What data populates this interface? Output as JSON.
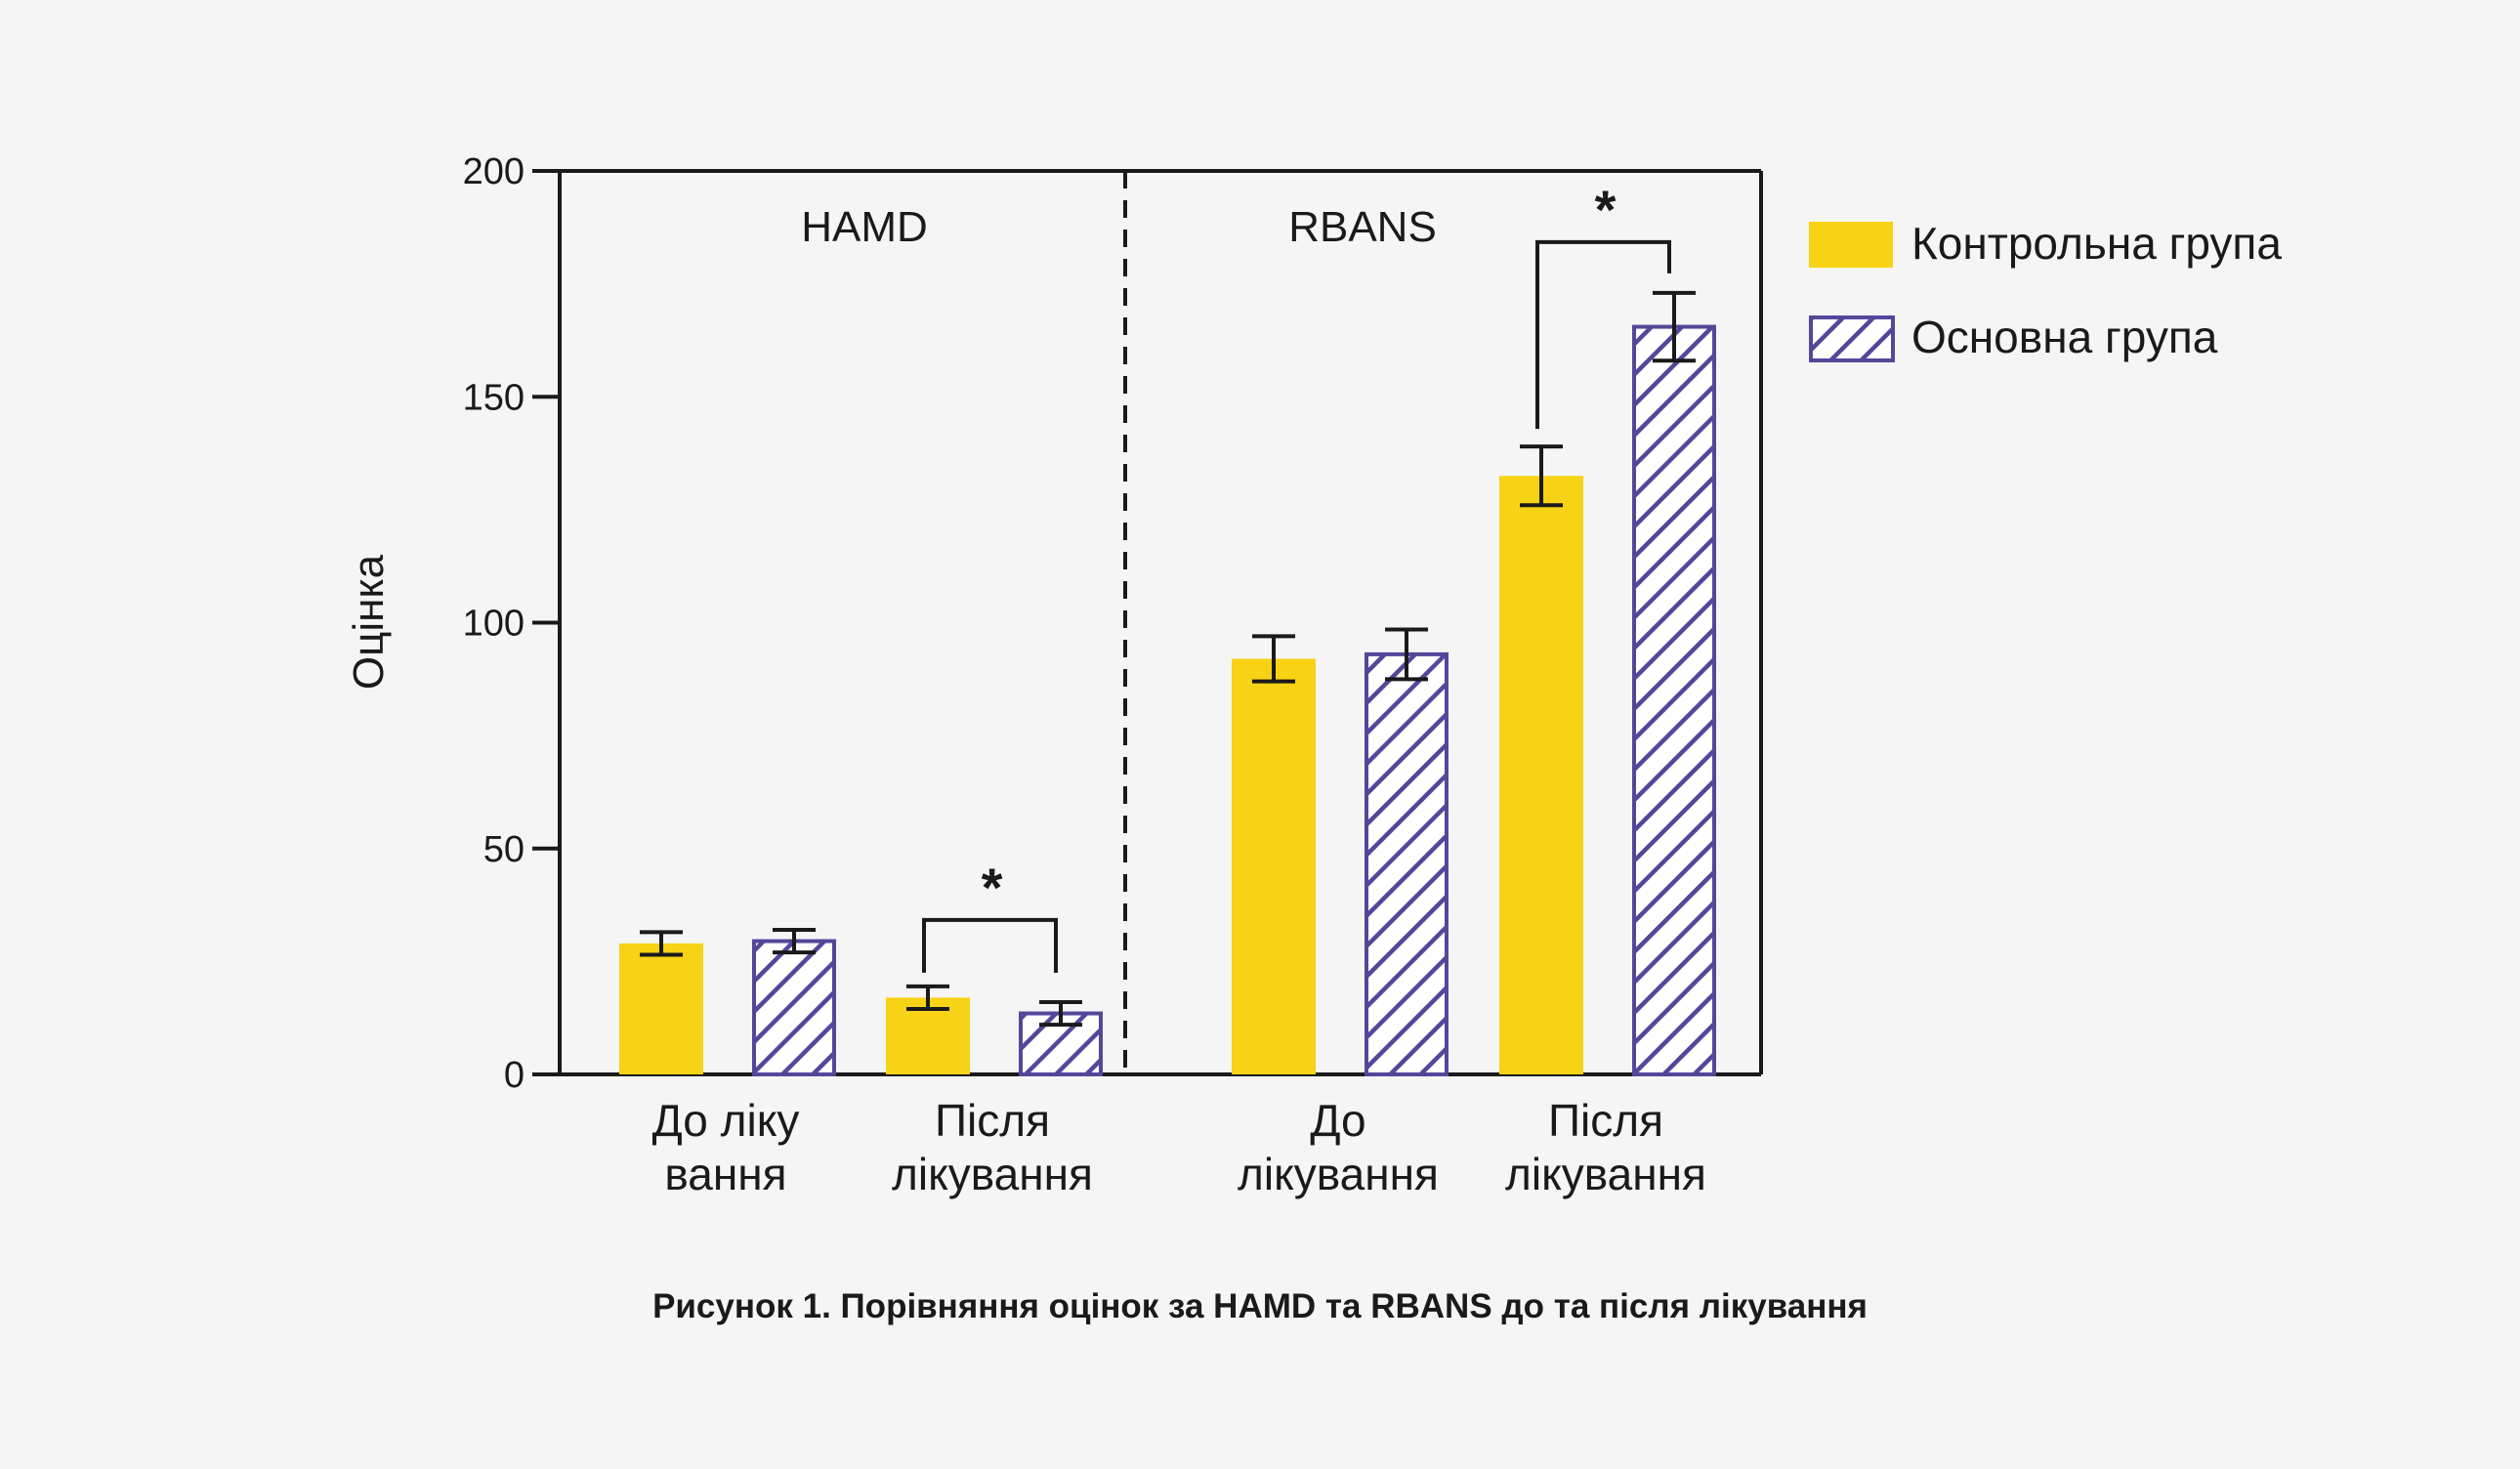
{
  "chart_data": {
    "type": "bar",
    "ylabel": "Оцінка",
    "ylim": [
      0,
      200
    ],
    "yticks": [
      0,
      50,
      100,
      150,
      200
    ],
    "grid": false,
    "legend_position": "right-top",
    "colors": {
      "control": "#f8d214",
      "treatment_stroke": "#54479a",
      "axis": "#1a1a1a"
    },
    "series": [
      {
        "name": "Контрольна група",
        "key": "control",
        "pattern": "solid"
      },
      {
        "name": "Основна група",
        "key": "treatment",
        "pattern": "hatched"
      }
    ],
    "panels": [
      {
        "label": "HAMD",
        "groups": [
          {
            "label_lines": [
              "До ліку",
              "вання"
            ],
            "control": 29,
            "control_err": 2.5,
            "treatment": 29.5,
            "treatment_err": 2.5,
            "significant": false
          },
          {
            "label_lines": [
              "Після",
              "лікування"
            ],
            "control": 17,
            "control_err": 2.5,
            "treatment": 13.5,
            "treatment_err": 2.5,
            "significant": true
          }
        ]
      },
      {
        "label": "RBANS",
        "groups": [
          {
            "label_lines": [
              "До",
              "лікування"
            ],
            "control": 92,
            "control_err": 5,
            "treatment": 93,
            "treatment_err": 5.5,
            "significant": false
          },
          {
            "label_lines": [
              "Після",
              "лікування"
            ],
            "control": 132.5,
            "control_err": 6.5,
            "treatment": 165.5,
            "treatment_err": 7.5,
            "significant": true
          }
        ]
      }
    ],
    "significance_marker": "*",
    "caption": "Рисунок 1. Порівняння оцінок за HAMD та RBANS до та після лікування"
  }
}
